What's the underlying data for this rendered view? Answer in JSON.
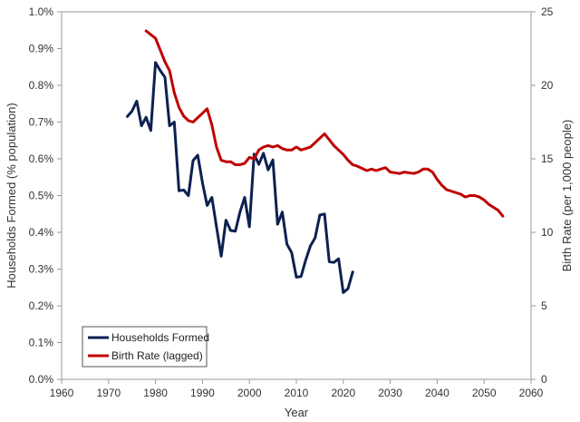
{
  "chart_data": {
    "type": "line",
    "xlabel": "Year",
    "ylabel_left": "Households Formed (% population)",
    "ylabel_right": "Birth Rate (per 1,000 people)",
    "xlim": [
      1960,
      2060
    ],
    "x_ticks": [
      1960,
      1970,
      1980,
      1990,
      2000,
      2010,
      2020,
      2030,
      2040,
      2050,
      2060
    ],
    "ylim_left": [
      0,
      1.0
    ],
    "y_ticks_left": [
      "0.0%",
      "0.1%",
      "0.2%",
      "0.3%",
      "0.4%",
      "0.5%",
      "0.6%",
      "0.7%",
      "0.8%",
      "0.9%",
      "1.0%"
    ],
    "ylim_right": [
      0,
      25
    ],
    "y_ticks_right": [
      "0",
      "5",
      "10",
      "15",
      "20",
      "25"
    ],
    "grid": false,
    "legend": {
      "position": "bottom-left",
      "entries": [
        "Households Formed",
        "Birth Rate (lagged)"
      ]
    },
    "series": [
      {
        "name": "Households Formed",
        "axis": "left",
        "color": "#0d2150",
        "points": [
          [
            1974,
            0.715
          ],
          [
            1975,
            0.73
          ],
          [
            1976,
            0.757
          ],
          [
            1977,
            0.69
          ],
          [
            1978,
            0.713
          ],
          [
            1979,
            0.677
          ],
          [
            1980,
            0.862
          ],
          [
            1981,
            0.84
          ],
          [
            1982,
            0.822
          ],
          [
            1983,
            0.69
          ],
          [
            1984,
            0.7
          ],
          [
            1985,
            0.513
          ],
          [
            1986,
            0.515
          ],
          [
            1987,
            0.5
          ],
          [
            1988,
            0.595
          ],
          [
            1989,
            0.61
          ],
          [
            1990,
            0.535
          ],
          [
            1991,
            0.473
          ],
          [
            1992,
            0.495
          ],
          [
            1993,
            0.415
          ],
          [
            1994,
            0.335
          ],
          [
            1995,
            0.433
          ],
          [
            1996,
            0.405
          ],
          [
            1997,
            0.403
          ],
          [
            1998,
            0.455
          ],
          [
            1999,
            0.495
          ],
          [
            2000,
            0.415
          ],
          [
            2001,
            0.613
          ],
          [
            2002,
            0.585
          ],
          [
            2003,
            0.615
          ],
          [
            2004,
            0.57
          ],
          [
            2005,
            0.597
          ],
          [
            2006,
            0.422
          ],
          [
            2007,
            0.455
          ],
          [
            2008,
            0.368
          ],
          [
            2009,
            0.345
          ],
          [
            2010,
            0.278
          ],
          [
            2011,
            0.28
          ],
          [
            2012,
            0.325
          ],
          [
            2013,
            0.363
          ],
          [
            2014,
            0.385
          ],
          [
            2015,
            0.447
          ],
          [
            2016,
            0.45
          ],
          [
            2017,
            0.32
          ],
          [
            2018,
            0.318
          ],
          [
            2019,
            0.328
          ],
          [
            2020,
            0.236
          ],
          [
            2021,
            0.247
          ],
          [
            2022,
            0.292
          ]
        ]
      },
      {
        "name": "Birth Rate (lagged)",
        "axis": "right",
        "color": "#c00000",
        "points": [
          [
            1978,
            23.7
          ],
          [
            1980,
            23.2
          ],
          [
            1981,
            22.4
          ],
          [
            1982,
            21.6
          ],
          [
            1983,
            21.0
          ],
          [
            1984,
            19.5
          ],
          [
            1985,
            18.5
          ],
          [
            1986,
            17.9
          ],
          [
            1987,
            17.6
          ],
          [
            1988,
            17.5
          ],
          [
            1989,
            17.8
          ],
          [
            1990,
            18.1
          ],
          [
            1991,
            18.4
          ],
          [
            1992,
            17.3
          ],
          [
            1993,
            15.8
          ],
          [
            1994,
            14.9
          ],
          [
            1995,
            14.8
          ],
          [
            1996,
            14.8
          ],
          [
            1997,
            14.6
          ],
          [
            1998,
            14.6
          ],
          [
            1999,
            14.7
          ],
          [
            2000,
            15.1
          ],
          [
            2001,
            15.0
          ],
          [
            2002,
            15.6
          ],
          [
            2003,
            15.8
          ],
          [
            2004,
            15.9
          ],
          [
            2005,
            15.8
          ],
          [
            2006,
            15.9
          ],
          [
            2007,
            15.7
          ],
          [
            2008,
            15.6
          ],
          [
            2009,
            15.6
          ],
          [
            2010,
            15.8
          ],
          [
            2011,
            15.6
          ],
          [
            2012,
            15.7
          ],
          [
            2013,
            15.8
          ],
          [
            2014,
            16.1
          ],
          [
            2015,
            16.4
          ],
          [
            2016,
            16.7
          ],
          [
            2017,
            16.3
          ],
          [
            2018,
            15.9
          ],
          [
            2019,
            15.6
          ],
          [
            2020,
            15.3
          ],
          [
            2021,
            14.9
          ],
          [
            2022,
            14.6
          ],
          [
            2023,
            14.5
          ],
          [
            2025,
            14.2
          ],
          [
            2026,
            14.3
          ],
          [
            2027,
            14.2
          ],
          [
            2028,
            14.3
          ],
          [
            2029,
            14.4
          ],
          [
            2030,
            14.1
          ],
          [
            2032,
            14.0
          ],
          [
            2033,
            14.1
          ],
          [
            2035,
            14.0
          ],
          [
            2036,
            14.1
          ],
          [
            2037,
            14.3
          ],
          [
            2038,
            14.3
          ],
          [
            2039,
            14.1
          ],
          [
            2040,
            13.6
          ],
          [
            2041,
            13.2
          ],
          [
            2042,
            12.9
          ],
          [
            2044,
            12.7
          ],
          [
            2045,
            12.6
          ],
          [
            2046,
            12.4
          ],
          [
            2047,
            12.5
          ],
          [
            2048,
            12.5
          ],
          [
            2049,
            12.4
          ],
          [
            2050,
            12.2
          ],
          [
            2051,
            11.9
          ],
          [
            2052,
            11.7
          ],
          [
            2053,
            11.5
          ],
          [
            2054,
            11.1
          ]
        ]
      }
    ]
  }
}
